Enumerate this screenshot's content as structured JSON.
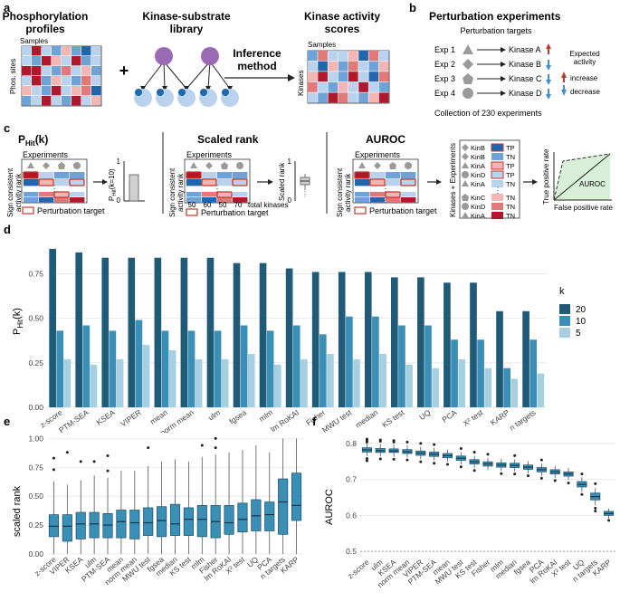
{
  "colors": {
    "red": "#b2182b",
    "red_mid": "#e07a7a",
    "red_light": "#f4b5b5",
    "blue": "#2166ac",
    "blue_mid": "#6fa3d8",
    "blue_light": "#b9d3ee",
    "teal_dark": "#1f5a77",
    "teal_mid": "#3a8fb7",
    "teal_light": "#a6d0e2",
    "purple": "#9b6ab5",
    "grey": "#9a9a9a",
    "green_fill": "#d7f0d7"
  },
  "panel_labels": {
    "a": "a",
    "b": "b",
    "c": "c",
    "d": "d",
    "e": "e",
    "f": "f"
  },
  "panel_a": {
    "phospho_title_1": "Phosphorylation",
    "phospho_title_2": "profiles",
    "samples_label": "Samples",
    "sites_label": "Phos. sites",
    "library_title_1": "Kinase-substrate",
    "library_title_2": "library",
    "plus": "+",
    "inference_1": "Inference",
    "inference_2": "method",
    "scores_title_1": "Kinase activity",
    "scores_title_2": "scores",
    "scores_samples": "Samples",
    "kinases_label": "Kinases"
  },
  "panel_b": {
    "title": "Perturbation experiments",
    "targets_header": "Perturbation targets",
    "experiments": [
      {
        "exp": "Exp 1",
        "kinase": "Kinase A",
        "shape": "triangle",
        "direction": "up"
      },
      {
        "exp": "Exp 2",
        "kinase": "Kinase B",
        "shape": "diamond",
        "direction": "down"
      },
      {
        "exp": "Exp 3",
        "kinase": "Kinase C",
        "shape": "pentagon",
        "direction": "down"
      },
      {
        "exp": "Exp 4",
        "kinase": "Kinase D",
        "shape": "circle",
        "direction": "down"
      }
    ],
    "expected_1": "Expected",
    "expected_2": "activity",
    "increase": "increase",
    "decrease": "decrease",
    "collection": "Collection of 230 experiments"
  },
  "panel_c": {
    "phit_title": "P",
    "phit_title_sub": "Hit",
    "phit_title_tail": "(k)",
    "experiments": "Experiments",
    "sign_1": "Sign consistent",
    "sign_2": "activity rank",
    "perturbation_target": "Perturbation target",
    "phit_axis": "P",
    "phit_axis_sub": "Hit",
    "phit_axis_tail": "(k=10)",
    "phit_tick_1": "1",
    "phit_tick_0": "0",
    "scaled_title": "Scaled rank",
    "rank_ticks": [
      "50",
      "60",
      "50",
      "70"
    ],
    "total_kinases": "total kinases",
    "scaled_axis": "Scaled rank",
    "scaled_tick_1": "1",
    "scaled_tick_0": "0",
    "auroc_title": "AUROC",
    "kin_axis": "Kinases + Experiments",
    "ellipsis": "⋮",
    "kin_rows": [
      {
        "name": "KinB",
        "label": "TP"
      },
      {
        "name": "KinB",
        "label": "TN"
      },
      {
        "name": "KinA",
        "label": "TP"
      },
      {
        "name": "KinD",
        "label": "TP"
      },
      {
        "name": "KinA",
        "label": "TN"
      },
      {
        "name": "KinC",
        "label": "TN"
      },
      {
        "name": "KinD",
        "label": "TN"
      },
      {
        "name": "KinA",
        "label": "TN"
      }
    ],
    "roc_y": "True positive rate",
    "roc_x": "False positive rate",
    "roc_label": "AUROC"
  },
  "chart_data": [
    {
      "panel": "d",
      "type": "bar",
      "ylabel": "P",
      "ylabel_sub": "Hit",
      "ylabel_tail": "(k)",
      "ylim": [
        0,
        0.92
      ],
      "yticks": [
        "0.00",
        "0.25",
        "0.50",
        "0.75"
      ],
      "ytick_values": [
        0,
        0.25,
        0.5,
        0.75
      ],
      "legend_title": "k",
      "categories": [
        "z-score",
        "PTM-SEA",
        "KSEA",
        "VIPER",
        "mean",
        "norm mean",
        "ulm",
        "fgsea",
        "mlm",
        "lm RoKAI",
        "Fisher",
        "MWU test",
        "median",
        "KS test",
        "UQ",
        "PCA",
        "X² test",
        "KARP",
        "n targets"
      ],
      "series": [
        {
          "name": "20",
          "values": [
            0.89,
            0.87,
            0.84,
            0.84,
            0.84,
            0.84,
            0.84,
            0.81,
            0.81,
            0.78,
            0.76,
            0.76,
            0.76,
            0.73,
            0.73,
            0.7,
            0.7,
            0.54,
            0.54
          ]
        },
        {
          "name": "10",
          "values": [
            0.43,
            0.46,
            0.43,
            0.49,
            0.43,
            0.43,
            0.43,
            0.46,
            0.43,
            0.46,
            0.41,
            0.51,
            0.51,
            0.46,
            0.46,
            0.38,
            0.38,
            0.22,
            0.38
          ]
        },
        {
          "name": "5",
          "values": [
            0.27,
            0.24,
            0.27,
            0.35,
            0.32,
            0.27,
            0.27,
            0.3,
            0.24,
            0.27,
            0.3,
            0.27,
            0.3,
            0.24,
            0.22,
            0.27,
            0.22,
            0.16,
            0.19
          ]
        }
      ]
    },
    {
      "panel": "e",
      "type": "box",
      "ylabel": "scaled rank",
      "ylim": [
        0,
        1.05
      ],
      "yticks": [
        "0.00",
        "0.25",
        "0.50",
        "0.75",
        "1.00"
      ],
      "ytick_values": [
        0,
        0.25,
        0.5,
        0.75,
        1.0
      ],
      "categories": [
        "z-score",
        "VIPER",
        "KSEA",
        "ulm",
        "PTM-SEA",
        "mean",
        "norm mean",
        "MWU test",
        "fgsea",
        "median",
        "KS test",
        "mlm",
        "Fisher",
        "lm RoKAI",
        "X² test",
        "UQ",
        "PCA",
        "n targets",
        "KARP"
      ],
      "boxes": [
        {
          "q1": 0.15,
          "median": 0.24,
          "q3": 0.34,
          "low": 0.0,
          "high": 0.63,
          "outliers": [
            0.83,
            0.73
          ]
        },
        {
          "q1": 0.11,
          "median": 0.24,
          "q3": 0.34,
          "low": 0.0,
          "high": 0.6,
          "outliers": [
            0.88
          ]
        },
        {
          "q1": 0.13,
          "median": 0.26,
          "q3": 0.36,
          "low": 0.0,
          "high": 0.64,
          "outliers": [
            0.8
          ]
        },
        {
          "q1": 0.14,
          "median": 0.26,
          "q3": 0.36,
          "low": 0.0,
          "high": 0.68,
          "outliers": [
            0.8
          ]
        },
        {
          "q1": 0.14,
          "median": 0.25,
          "q3": 0.35,
          "low": 0.0,
          "high": 0.66,
          "outliers": [
            0.85,
            0.72
          ]
        },
        {
          "q1": 0.14,
          "median": 0.28,
          "q3": 0.38,
          "low": 0.0,
          "high": 0.72,
          "outliers": []
        },
        {
          "q1": 0.13,
          "median": 0.27,
          "q3": 0.38,
          "low": 0.0,
          "high": 0.72,
          "outliers": []
        },
        {
          "q1": 0.16,
          "median": 0.27,
          "q3": 0.4,
          "low": 0.0,
          "high": 0.76,
          "outliers": [
            0.92
          ]
        },
        {
          "q1": 0.15,
          "median": 0.29,
          "q3": 0.41,
          "low": 0.0,
          "high": 0.8,
          "outliers": []
        },
        {
          "q1": 0.16,
          "median": 0.26,
          "q3": 0.43,
          "low": 0.0,
          "high": 0.82,
          "outliers": []
        },
        {
          "q1": 0.16,
          "median": 0.3,
          "q3": 0.4,
          "low": 0.0,
          "high": 0.8,
          "outliers": []
        },
        {
          "q1": 0.15,
          "median": 0.3,
          "q3": 0.42,
          "low": 0.0,
          "high": 0.84,
          "outliers": [
            0.94
          ]
        },
        {
          "q1": 0.14,
          "median": 0.28,
          "q3": 0.42,
          "low": 0.0,
          "high": 0.86,
          "outliers": [
            1.0,
            0.92
          ]
        },
        {
          "q1": 0.17,
          "median": 0.27,
          "q3": 0.42,
          "low": 0.0,
          "high": 0.88,
          "outliers": []
        },
        {
          "q1": 0.19,
          "median": 0.3,
          "q3": 0.44,
          "low": 0.0,
          "high": 0.9,
          "outliers": []
        },
        {
          "q1": 0.2,
          "median": 0.33,
          "q3": 0.47,
          "low": 0.0,
          "high": 0.94,
          "outliers": []
        },
        {
          "q1": 0.2,
          "median": 0.34,
          "q3": 0.45,
          "low": 0.0,
          "high": 0.88,
          "outliers": []
        },
        {
          "q1": 0.17,
          "median": 0.45,
          "q3": 0.65,
          "low": 0.0,
          "high": 1.0,
          "outliers": []
        },
        {
          "q1": 0.29,
          "median": 0.42,
          "q3": 0.7,
          "low": 0.0,
          "high": 1.0,
          "outliers": []
        }
      ]
    },
    {
      "panel": "f",
      "type": "box",
      "ylabel": "AUROC",
      "ylim": [
        0.485,
        0.83
      ],
      "yticks": [
        "0.5",
        "0.6",
        "0.7",
        "0.8"
      ],
      "ytick_values": [
        0.5,
        0.6,
        0.7,
        0.8
      ],
      "reference_line": 0.5,
      "categories": [
        "z-score",
        "ulm",
        "KSEA",
        "norm mean",
        "VIPER",
        "PTM-SEA",
        "mean",
        "MWU test",
        "KS test",
        "Fisher",
        "mlm",
        "median",
        "fgsea",
        "PCA",
        "lm RoKAI",
        "X² test",
        "UQ",
        "n targets",
        "KARP"
      ],
      "boxes": [
        {
          "q1": 0.776,
          "median": 0.782,
          "q3": 0.788,
          "low": 0.765,
          "high": 0.8,
          "outliers": [
            0.812,
            0.808,
            0.804,
            0.758,
            0.752
          ]
        },
        {
          "q1": 0.775,
          "median": 0.78,
          "q3": 0.786,
          "low": 0.764,
          "high": 0.798,
          "outliers": [
            0.81,
            0.806,
            0.757
          ]
        },
        {
          "q1": 0.775,
          "median": 0.779,
          "q3": 0.785,
          "low": 0.763,
          "high": 0.797,
          "outliers": [
            0.808,
            0.804,
            0.756
          ]
        },
        {
          "q1": 0.772,
          "median": 0.777,
          "q3": 0.783,
          "low": 0.761,
          "high": 0.795,
          "outliers": [
            0.804,
            0.754
          ]
        },
        {
          "q1": 0.767,
          "median": 0.773,
          "q3": 0.779,
          "low": 0.756,
          "high": 0.79,
          "outliers": [
            0.8,
            0.749
          ]
        },
        {
          "q1": 0.764,
          "median": 0.77,
          "q3": 0.776,
          "low": 0.753,
          "high": 0.787,
          "outliers": [
            0.797,
            0.745
          ]
        },
        {
          "q1": 0.76,
          "median": 0.766,
          "q3": 0.772,
          "low": 0.749,
          "high": 0.783,
          "outliers": [
            0.742
          ]
        },
        {
          "q1": 0.753,
          "median": 0.759,
          "q3": 0.765,
          "low": 0.742,
          "high": 0.776,
          "outliers": [
            0.786,
            0.735
          ]
        },
        {
          "q1": 0.743,
          "median": 0.749,
          "q3": 0.755,
          "low": 0.732,
          "high": 0.766,
          "outliers": [
            0.776,
            0.725
          ]
        },
        {
          "q1": 0.737,
          "median": 0.743,
          "q3": 0.749,
          "low": 0.726,
          "high": 0.76,
          "outliers": [
            0.77
          ]
        },
        {
          "q1": 0.734,
          "median": 0.74,
          "q3": 0.746,
          "low": 0.723,
          "high": 0.757,
          "outliers": [
            0.716
          ]
        },
        {
          "q1": 0.733,
          "median": 0.739,
          "q3": 0.745,
          "low": 0.722,
          "high": 0.756,
          "outliers": [
            0.766,
            0.715
          ]
        },
        {
          "q1": 0.728,
          "median": 0.734,
          "q3": 0.74,
          "low": 0.717,
          "high": 0.751,
          "outliers": [
            0.71
          ]
        },
        {
          "q1": 0.721,
          "median": 0.727,
          "q3": 0.733,
          "low": 0.71,
          "high": 0.744,
          "outliers": [
            0.754,
            0.703
          ]
        },
        {
          "q1": 0.715,
          "median": 0.721,
          "q3": 0.727,
          "low": 0.704,
          "high": 0.738,
          "outliers": [
            0.697
          ]
        },
        {
          "q1": 0.709,
          "median": 0.715,
          "q3": 0.721,
          "low": 0.698,
          "high": 0.732,
          "outliers": [
            0.69
          ]
        },
        {
          "q1": 0.679,
          "median": 0.686,
          "q3": 0.694,
          "low": 0.665,
          "high": 0.706,
          "outliers": [
            0.715,
            0.658
          ]
        },
        {
          "q1": 0.643,
          "median": 0.652,
          "q3": 0.662,
          "low": 0.628,
          "high": 0.676,
          "outliers": [
            0.62,
            0.612,
            0.688
          ]
        },
        {
          "q1": 0.6,
          "median": 0.605,
          "q3": 0.611,
          "low": 0.591,
          "high": 0.619,
          "outliers": [
            0.586
          ]
        }
      ]
    }
  ]
}
